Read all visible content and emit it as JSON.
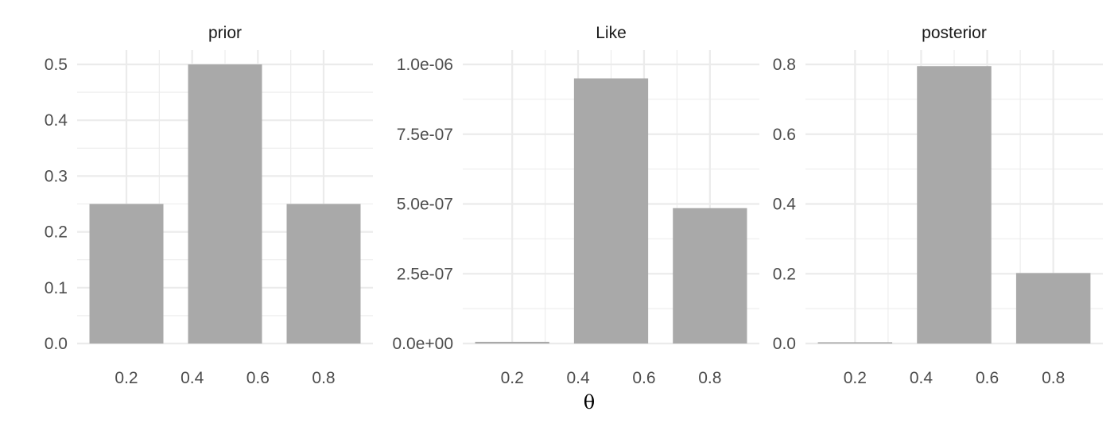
{
  "chart_data": {
    "type": "bar",
    "xlabel": "θ",
    "panels": [
      {
        "title": "prior",
        "x": [
          0.2,
          0.5,
          0.8
        ],
        "values": [
          0.25,
          0.5,
          0.25
        ],
        "ylim": [
          0,
          0.5
        ],
        "xlim": [
          0.05,
          0.95
        ],
        "xticks": [
          0.2,
          0.4,
          0.6,
          0.8
        ],
        "xtick_labels": [
          "0.2",
          "0.4",
          "0.6",
          "0.8"
        ],
        "yticks": [
          0,
          0.1,
          0.2,
          0.3,
          0.4,
          0.5
        ],
        "ytick_labels": [
          "0.0",
          "0.1",
          "0.2",
          "0.3",
          "0.4",
          "0.5"
        ]
      },
      {
        "title": "Like",
        "x": [
          0.2,
          0.5,
          0.8
        ],
        "values": [
          6e-09,
          9.5e-07,
          4.85e-07
        ],
        "ylim": [
          0,
          1e-06
        ],
        "xlim": [
          0.05,
          0.95
        ],
        "xticks": [
          0.2,
          0.4,
          0.6,
          0.8
        ],
        "xtick_labels": [
          "0.2",
          "0.4",
          "0.6",
          "0.8"
        ],
        "yticks": [
          0,
          2.5e-07,
          5e-07,
          7.5e-07,
          1e-06
        ],
        "ytick_labels": [
          "0.0e+00",
          "2.5e-07",
          "5.0e-07",
          "7.5e-07",
          "1.0e-06"
        ]
      },
      {
        "title": "posterior",
        "x": [
          0.2,
          0.5,
          0.8
        ],
        "values": [
          0.003,
          0.795,
          0.202
        ],
        "ylim": [
          0,
          0.8
        ],
        "xlim": [
          0.05,
          0.95
        ],
        "xticks": [
          0.2,
          0.4,
          0.6,
          0.8
        ],
        "xtick_labels": [
          "0.2",
          "0.4",
          "0.6",
          "0.8"
        ],
        "yticks": [
          0,
          0.2,
          0.4,
          0.6,
          0.8
        ],
        "ytick_labels": [
          "0.0",
          "0.2",
          "0.4",
          "0.6",
          "0.8"
        ]
      }
    ],
    "bar_width": 0.225,
    "bar_color": "#a9a9a9",
    "grid_color": "#ebebeb",
    "grid": true,
    "legend": "none"
  }
}
